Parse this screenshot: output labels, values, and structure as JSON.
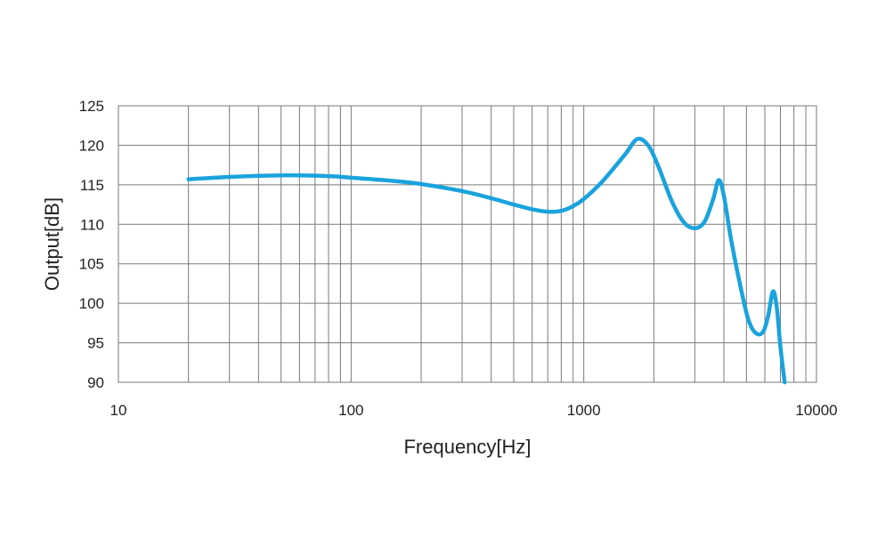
{
  "chart_data": {
    "type": "line",
    "xlabel": "Frequency[Hz]",
    "ylabel": "Output[dB]",
    "x_scale": "log",
    "xlim": [
      10,
      10000
    ],
    "ylim": [
      90,
      125
    ],
    "x_ticks": [
      "10",
      "100",
      "1000",
      "10000"
    ],
    "y_ticks": [
      "125",
      "120",
      "115",
      "110",
      "105",
      "100",
      "95",
      "90"
    ],
    "grid": true,
    "line_color": "#1AA3DD",
    "series": [
      {
        "x": [
          20,
          30,
          50,
          80,
          100,
          150,
          200,
          300,
          400,
          500,
          600,
          700,
          800,
          900,
          1000,
          1200,
          1500,
          1700,
          1900,
          2100,
          2400,
          2700,
          3000,
          3300,
          3600,
          3800,
          4000,
          4300,
          4700,
          5100,
          5500,
          5900,
          6200,
          6500,
          6750,
          7000,
          7300
        ],
        "y": [
          115.7,
          116.0,
          116.2,
          116.1,
          115.9,
          115.5,
          115.1,
          114.2,
          113.3,
          112.5,
          111.9,
          111.6,
          111.7,
          112.3,
          113.2,
          115.4,
          118.8,
          120.8,
          119.9,
          117.2,
          112.8,
          110.2,
          109.5,
          110.3,
          113.2,
          115.6,
          113.6,
          108.0,
          102.3,
          97.9,
          96.2,
          96.4,
          98.4,
          101.5,
          99.5,
          94.5,
          90.0
        ]
      }
    ]
  }
}
